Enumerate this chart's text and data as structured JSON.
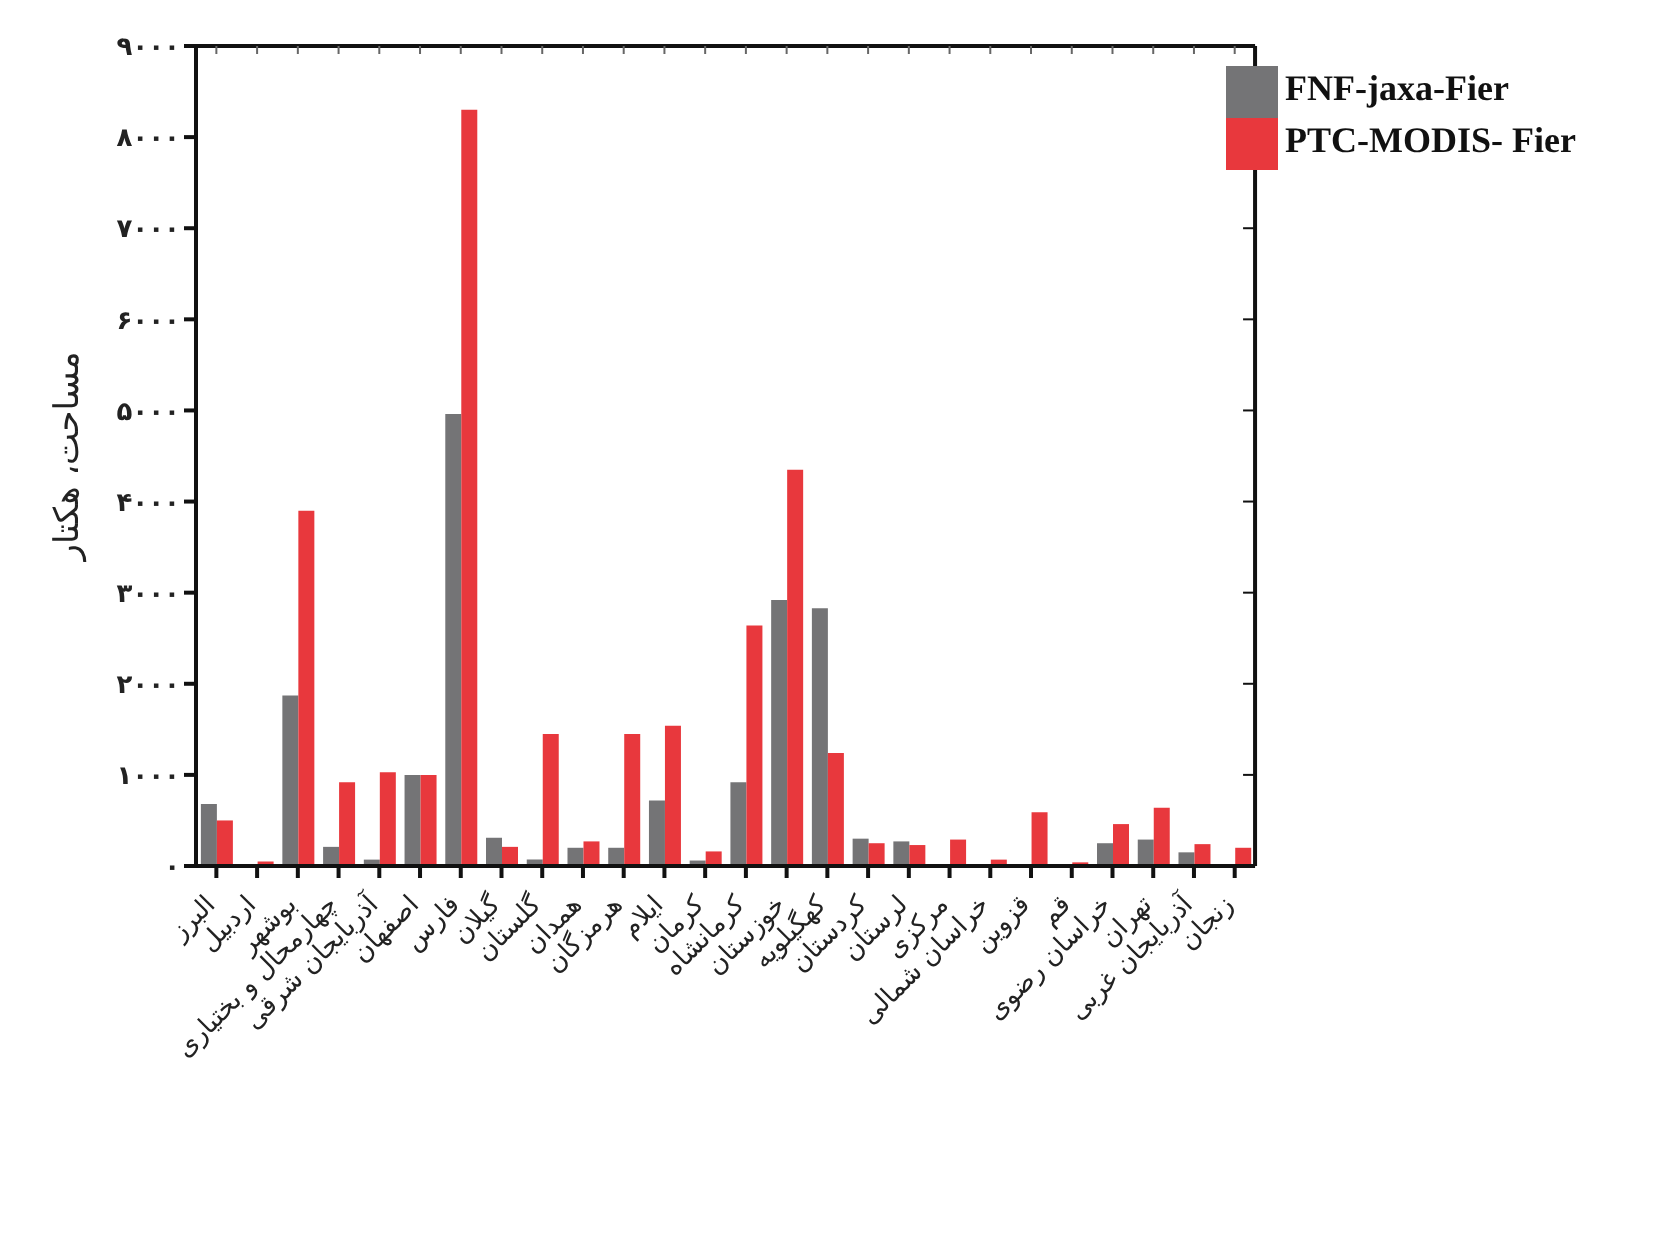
{
  "chart_data": {
    "type": "bar",
    "ylabel": "مساحت، هکتار",
    "categories": [
      "البرز",
      "اردبیل",
      "بوشهر",
      "چهارمحال و بختیاری",
      "آذربایجان شرقی",
      "اصفهان",
      "فارس",
      "گیلان",
      "گلستان",
      "همدان",
      "هرمزگان",
      "ایلام",
      "کرمان",
      "کرمانشاه",
      "خوزستان",
      "کهگیلویه",
      "کردستان",
      "لرستان",
      "مرکزی",
      "خراسان شمالی",
      "قزوین",
      "قم",
      "خراسان رضوی",
      "تهران",
      "آذربایجان غربی",
      "زنجان"
    ],
    "series": [
      {
        "name": "FNF-jaxa-Fier",
        "color": "#747476",
        "values": [
          680,
          0,
          1870,
          210,
          70,
          1000,
          4960,
          310,
          70,
          200,
          200,
          720,
          60,
          920,
          2920,
          2830,
          300,
          270,
          0,
          0,
          0,
          0,
          250,
          290,
          150,
          0
        ]
      },
      {
        "name": "PTC-MODIS- Fier",
        "color": "#e8383d",
        "values": [
          500,
          50,
          3900,
          920,
          1030,
          1000,
          8300,
          210,
          1450,
          270,
          1450,
          1540,
          160,
          2640,
          4350,
          1240,
          250,
          230,
          290,
          70,
          590,
          40,
          460,
          640,
          240,
          200
        ]
      }
    ],
    "ylim": [
      0,
      9000
    ],
    "yticks": [
      {
        "value": 0,
        "label": "۰"
      },
      {
        "value": 1000,
        "label": "۱۰۰۰"
      },
      {
        "value": 2000,
        "label": "۲۰۰۰"
      },
      {
        "value": 3000,
        "label": "۳۰۰۰"
      },
      {
        "value": 4000,
        "label": "۴۰۰۰"
      },
      {
        "value": 5000,
        "label": "۵۰۰۰"
      },
      {
        "value": 6000,
        "label": "۶۰۰۰"
      },
      {
        "value": 7000,
        "label": "۷۰۰۰"
      },
      {
        "value": 8000,
        "label": "۸۰۰۰"
      },
      {
        "value": 9000,
        "label": "۹۰۰۰"
      }
    ],
    "legend": "top right"
  }
}
